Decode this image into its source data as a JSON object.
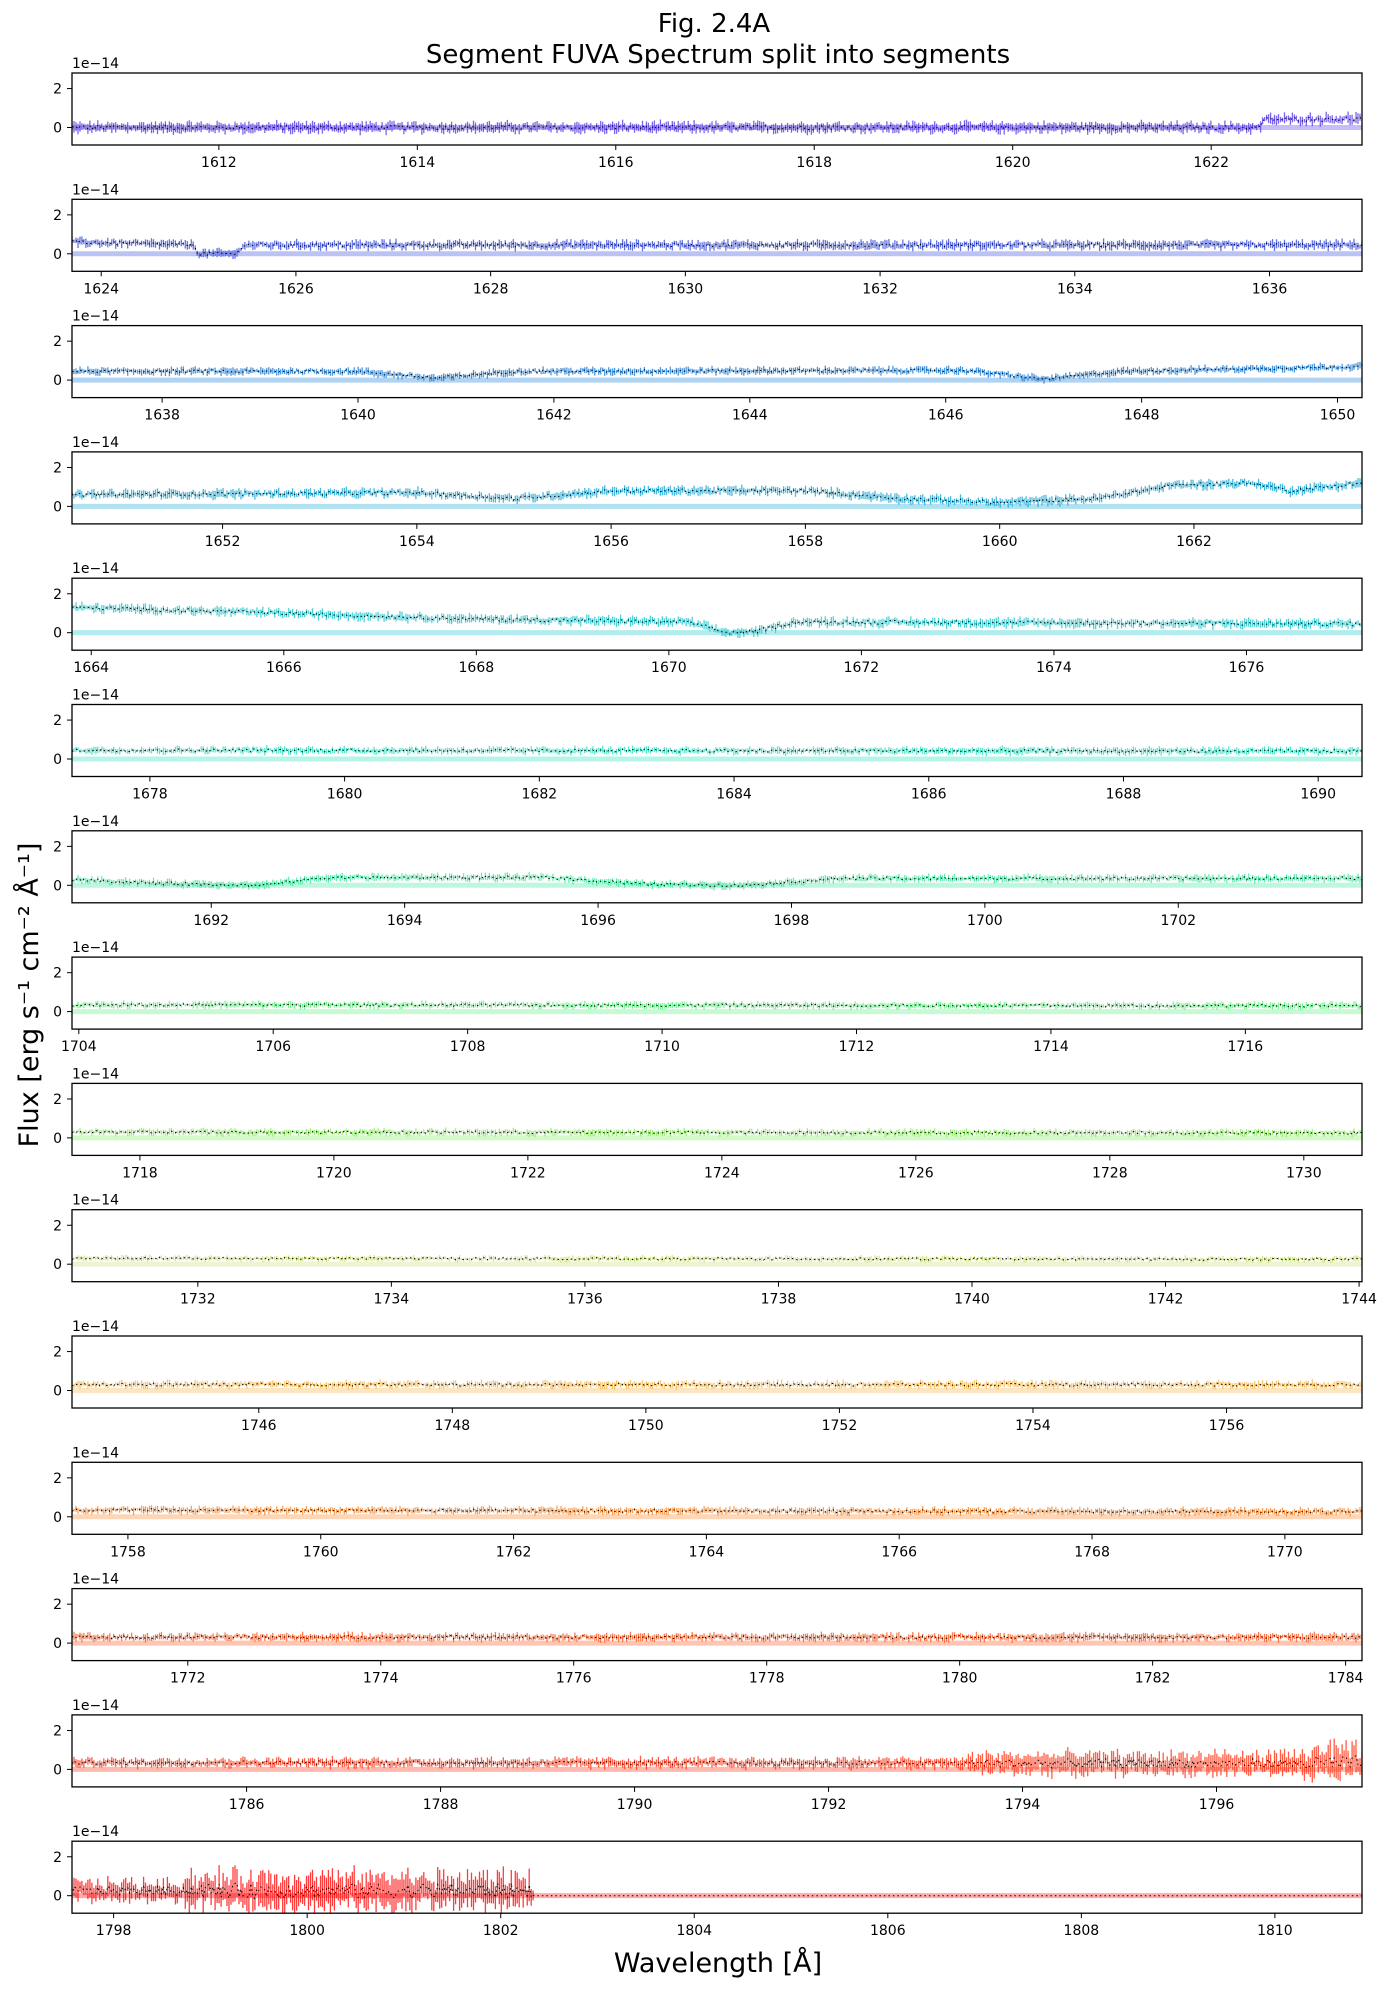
{
  "chart_data": {
    "type": "line",
    "title": "Fig. 2.4A",
    "subtitle": "Segment FUVA Spectrum split into segments",
    "xlabel": "Wavelength [Å]",
    "ylabel": "Flux [erg s⁻¹ cm⁻² Å⁻¹]",
    "y_offset_label": "1e−14",
    "ylim": [
      -0.9,
      2.8
    ],
    "yticks": [
      0,
      2
    ],
    "grid": false,
    "style": "errorbar band with dotted black flux line",
    "panels": [
      {
        "xlim": [
          1610.52,
          1623.52
        ],
        "xticks": [
          1612,
          1614,
          1616,
          1618,
          1620,
          1622
        ],
        "color": "#5b3fe8",
        "noise": 0.3,
        "knots": [
          [
            1610.52,
            0
          ],
          [
            1622.5,
            0
          ],
          [
            1622.51,
            0.4
          ],
          [
            1623.52,
            0.45
          ]
        ]
      },
      {
        "xlim": [
          1623.7,
          1636.95
        ],
        "xticks": [
          1624,
          1626,
          1628,
          1630,
          1632,
          1634,
          1636
        ],
        "color": "#3b50e0",
        "noise": 0.25,
        "knots": [
          [
            1623.7,
            0.6
          ],
          [
            1624.95,
            0.45
          ],
          [
            1625.0,
            0
          ],
          [
            1625.4,
            0
          ],
          [
            1625.45,
            0.45
          ],
          [
            1636.95,
            0.45
          ]
        ]
      },
      {
        "xlim": [
          1637.08,
          1650.25
        ],
        "xticks": [
          1638,
          1640,
          1642,
          1644,
          1646,
          1648,
          1650
        ],
        "color": "#1e80d8",
        "noise": 0.2,
        "knots": [
          [
            1637.08,
            0.45
          ],
          [
            1640.0,
            0.45
          ],
          [
            1640.8,
            0.1
          ],
          [
            1641.6,
            0.45
          ],
          [
            1646.2,
            0.5
          ],
          [
            1647.0,
            0.05
          ],
          [
            1647.8,
            0.45
          ],
          [
            1650.25,
            0.7
          ]
        ]
      },
      {
        "xlim": [
          1650.45,
          1663.73
        ],
        "xticks": [
          1652,
          1654,
          1656,
          1658,
          1660,
          1662
        ],
        "color": "#1aaad8",
        "noise": 0.25,
        "knots": [
          [
            1650.45,
            0.6
          ],
          [
            1654,
            0.7
          ],
          [
            1655,
            0.4
          ],
          [
            1656,
            0.8
          ],
          [
            1658,
            0.8
          ],
          [
            1659,
            0.4
          ],
          [
            1660,
            0.2
          ],
          [
            1661,
            0.4
          ],
          [
            1661.8,
            1.1
          ],
          [
            1662.6,
            1.2
          ],
          [
            1663,
            0.8
          ],
          [
            1663.73,
            1.2
          ]
        ]
      },
      {
        "xlim": [
          1663.8,
          1677.2
        ],
        "xticks": [
          1664,
          1666,
          1668,
          1670,
          1672,
          1674,
          1676
        ],
        "color": "#22c8d0",
        "noise": 0.25,
        "knots": [
          [
            1663.8,
            1.3
          ],
          [
            1666,
            1.0
          ],
          [
            1668,
            0.7
          ],
          [
            1670.2,
            0.55
          ],
          [
            1670.6,
            0.0
          ],
          [
            1670.9,
            0.05
          ],
          [
            1671.3,
            0.55
          ],
          [
            1677.2,
            0.45
          ]
        ]
      },
      {
        "xlim": [
          1677.2,
          1690.45
        ],
        "xticks": [
          1678,
          1680,
          1682,
          1684,
          1686,
          1688,
          1690
        ],
        "color": "#2ee0c0",
        "noise": 0.2,
        "knots": [
          [
            1677.2,
            0.45
          ],
          [
            1690.45,
            0.4
          ]
        ]
      },
      {
        "xlim": [
          1690.56,
          1703.9
        ],
        "xticks": [
          1692,
          1694,
          1696,
          1698,
          1700,
          1702
        ],
        "color": "#40e8a0",
        "noise": 0.2,
        "knots": [
          [
            1690.56,
            0.3
          ],
          [
            1691.5,
            0.1
          ],
          [
            1692.5,
            0.0
          ],
          [
            1693.2,
            0.4
          ],
          [
            1695.5,
            0.4
          ],
          [
            1696.5,
            0.05
          ],
          [
            1697.5,
            0.0
          ],
          [
            1698.5,
            0.35
          ],
          [
            1703.9,
            0.35
          ]
        ]
      },
      {
        "xlim": [
          1703.93,
          1717.2
        ],
        "xticks": [
          1704,
          1706,
          1708,
          1710,
          1712,
          1714,
          1716
        ],
        "color": "#5cf080",
        "noise": 0.18,
        "knots": [
          [
            1703.93,
            0.35
          ],
          [
            1717.2,
            0.3
          ]
        ]
      },
      {
        "xlim": [
          1717.3,
          1730.6
        ],
        "xticks": [
          1718,
          1720,
          1722,
          1724,
          1726,
          1728,
          1730
        ],
        "color": "#88ea60",
        "noise": 0.18,
        "knots": [
          [
            1717.3,
            0.3
          ],
          [
            1730.6,
            0.25
          ]
        ]
      },
      {
        "xlim": [
          1730.7,
          1744.03
        ],
        "xticks": [
          1732,
          1734,
          1736,
          1738,
          1740,
          1742,
          1744
        ],
        "color": "#cbe07a",
        "noise": 0.15,
        "knots": [
          [
            1730.7,
            0.3
          ],
          [
            1744.03,
            0.25
          ]
        ]
      },
      {
        "xlim": [
          1744.07,
          1757.4
        ],
        "xticks": [
          1746,
          1748,
          1750,
          1752,
          1754,
          1756
        ],
        "color": "#f5b850",
        "noise": 0.2,
        "knots": [
          [
            1744.07,
            0.3
          ],
          [
            1757.4,
            0.3
          ]
        ]
      },
      {
        "xlim": [
          1757.42,
          1770.8
        ],
        "xticks": [
          1758,
          1760,
          1762,
          1764,
          1766,
          1768,
          1770
        ],
        "color": "#f88a30",
        "noise": 0.2,
        "knots": [
          [
            1757.42,
            0.35
          ],
          [
            1770.8,
            0.25
          ]
        ]
      },
      {
        "xlim": [
          1770.8,
          1784.17
        ],
        "xticks": [
          1772,
          1774,
          1776,
          1778,
          1780,
          1782,
          1784
        ],
        "color": "#ff5a22",
        "noise": 0.22,
        "knots": [
          [
            1770.8,
            0.3
          ],
          [
            1784.17,
            0.3
          ]
        ]
      },
      {
        "xlim": [
          1784.2,
          1797.5
        ],
        "xticks": [
          1786,
          1788,
          1790,
          1792,
          1794,
          1796
        ],
        "color": "#ff3515",
        "noise": 0.25,
        "noise_knots": [
          [
            1784.2,
            0.25
          ],
          [
            1793.3,
            0.3
          ],
          [
            1793.6,
            0.6
          ],
          [
            1796.8,
            0.6
          ],
          [
            1797.0,
            1.0
          ],
          [
            1797.5,
            1.0
          ]
        ],
        "knots": [
          [
            1784.2,
            0.35
          ],
          [
            1797.5,
            0.3
          ]
        ]
      },
      {
        "xlim": [
          1797.57,
          1810.9
        ],
        "xticks": [
          1798,
          1800,
          1802,
          1804,
          1806,
          1808,
          1810
        ],
        "color": "#ff0a0a",
        "noise": 0.8,
        "noise_knots": [
          [
            1797.57,
            0.6
          ],
          [
            1798.7,
            0.6
          ],
          [
            1798.75,
            1.0
          ],
          [
            1802.3,
            1.0
          ],
          [
            1802.35,
            0
          ],
          [
            1810.9,
            0
          ]
        ],
        "knots": [
          [
            1797.57,
            0.25
          ],
          [
            1802.3,
            0.25
          ],
          [
            1802.35,
            0
          ],
          [
            1810.9,
            0
          ]
        ]
      }
    ]
  }
}
